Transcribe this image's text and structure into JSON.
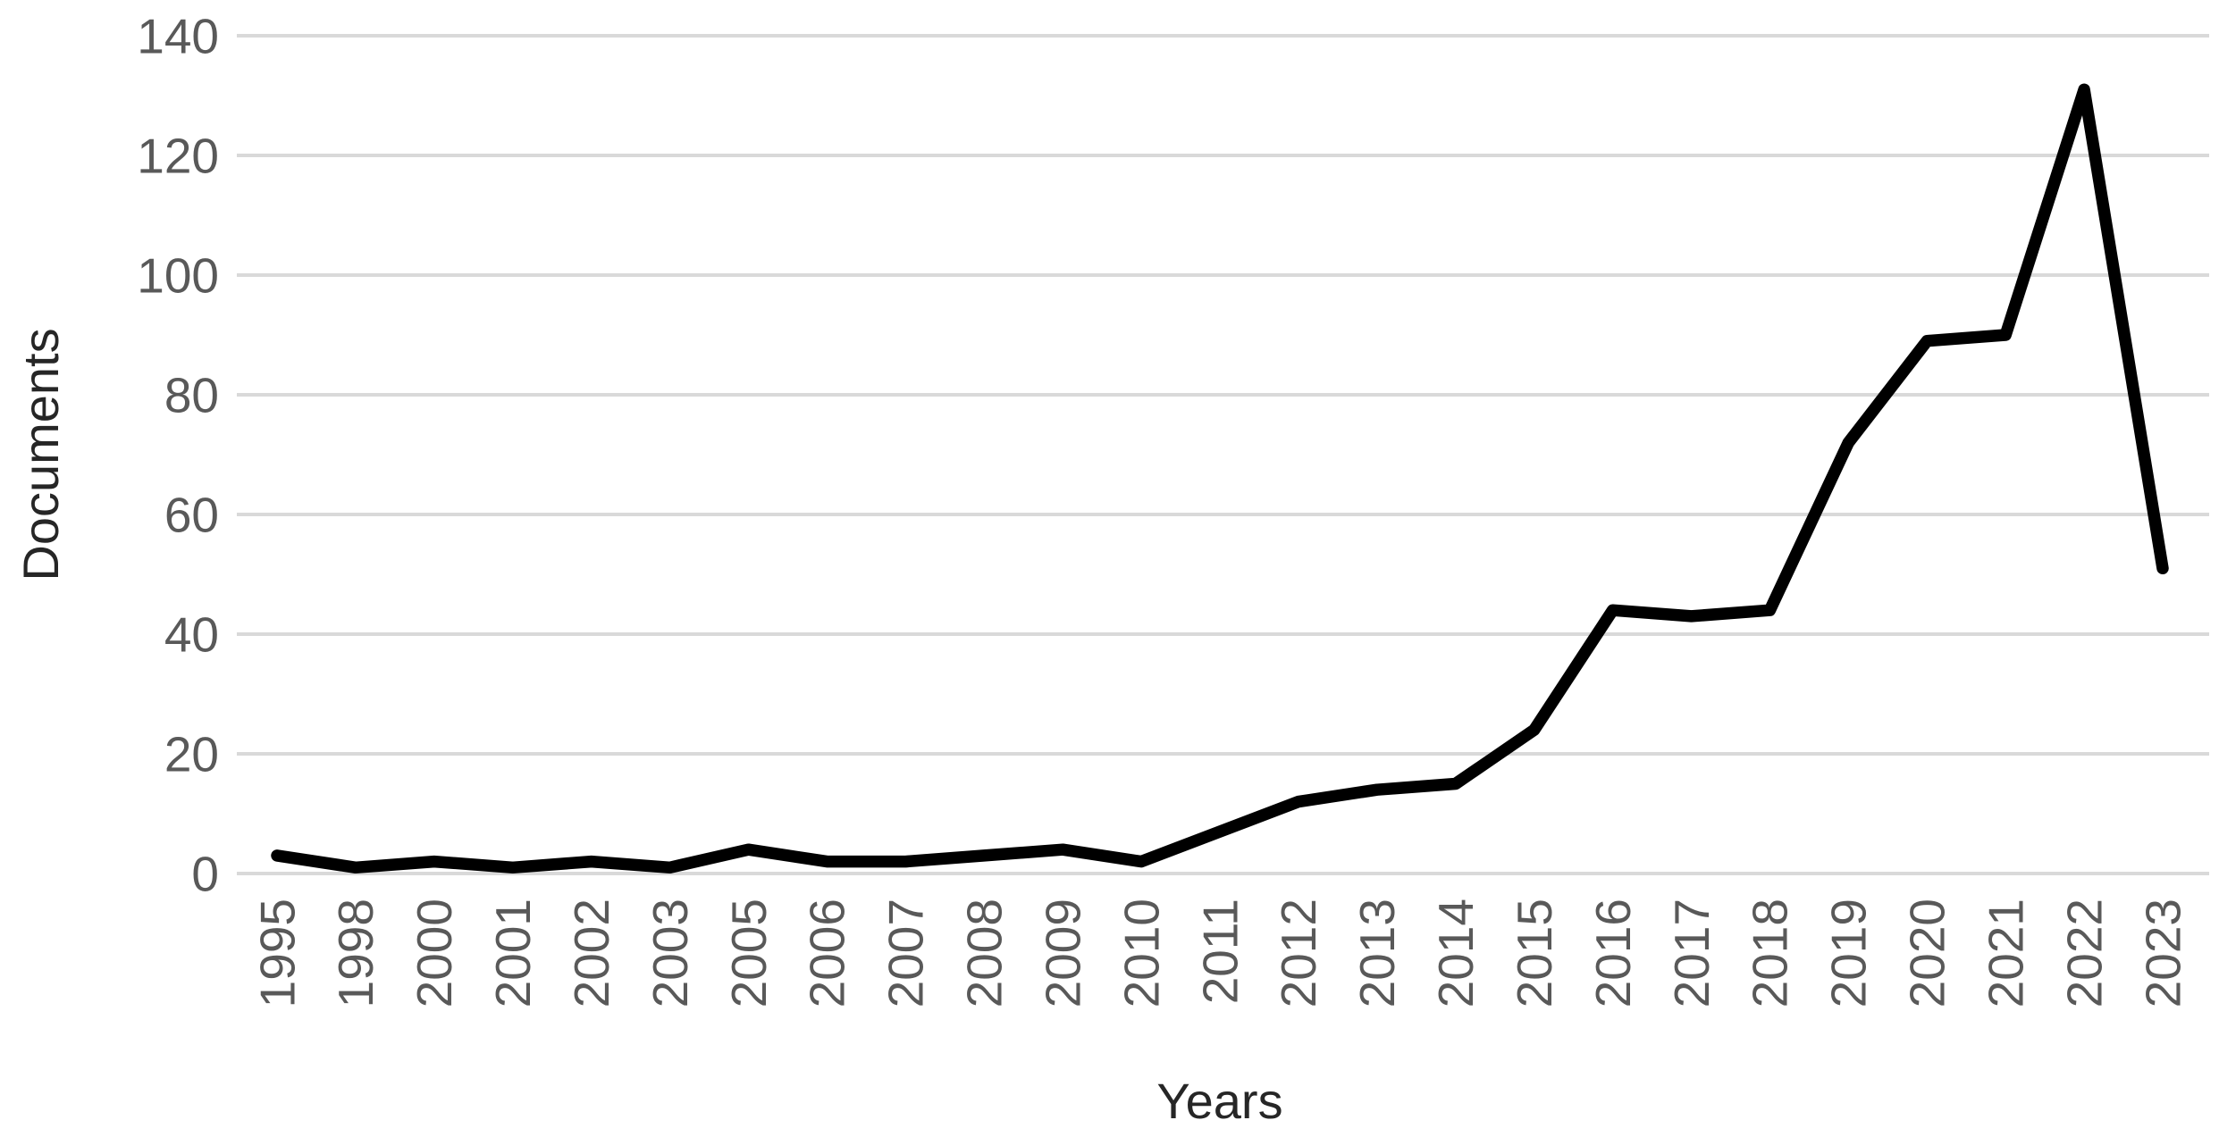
{
  "chart_data": {
    "type": "line",
    "title": "",
    "xlabel": "Years",
    "ylabel": "Documents",
    "categories": [
      "1995",
      "1998",
      "2000",
      "2001",
      "2002",
      "2003",
      "2005",
      "2006",
      "2007",
      "2008",
      "2009",
      "2010",
      "2011",
      "2012",
      "2013",
      "2014",
      "2015",
      "2016",
      "2017",
      "2018",
      "2019",
      "2020",
      "2021",
      "2022",
      "2023"
    ],
    "series": [
      {
        "name": "Documents",
        "values": [
          3,
          1,
          2,
          1,
          2,
          1,
          4,
          2,
          2,
          3,
          4,
          2,
          7,
          12,
          14,
          15,
          24,
          44,
          43,
          44,
          72,
          89,
          90,
          131,
          51
        ]
      }
    ],
    "ylim": [
      0,
      140
    ],
    "ytick_step": 20,
    "yticks": [
      0,
      20,
      40,
      60,
      80,
      100,
      120,
      140
    ],
    "grid": "horizontal-major",
    "legend": "none",
    "colors": {
      "line": "#000000",
      "gridline": "#d9d9d9",
      "tick_label": "#595959",
      "axis_title": "#262626",
      "background": "#ffffff"
    }
  }
}
